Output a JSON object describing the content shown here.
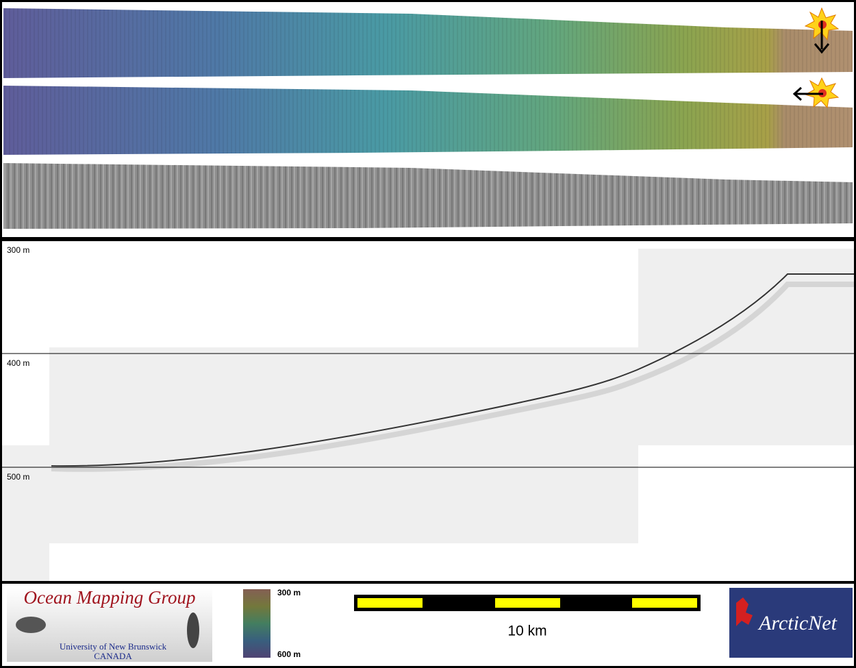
{
  "profile": {
    "depth_labels": [
      "300 m",
      "400 m",
      "500 m"
    ]
  },
  "footer": {
    "logo": {
      "title": "Ocean Mapping Group",
      "line1": "University of New Brunswick",
      "line2": "CANADA"
    },
    "colorbar": {
      "top": "300 m",
      "bottom": "600 m"
    },
    "scale_bar": {
      "label": "10 km"
    },
    "partner": {
      "name": "ArcticNet"
    }
  }
}
